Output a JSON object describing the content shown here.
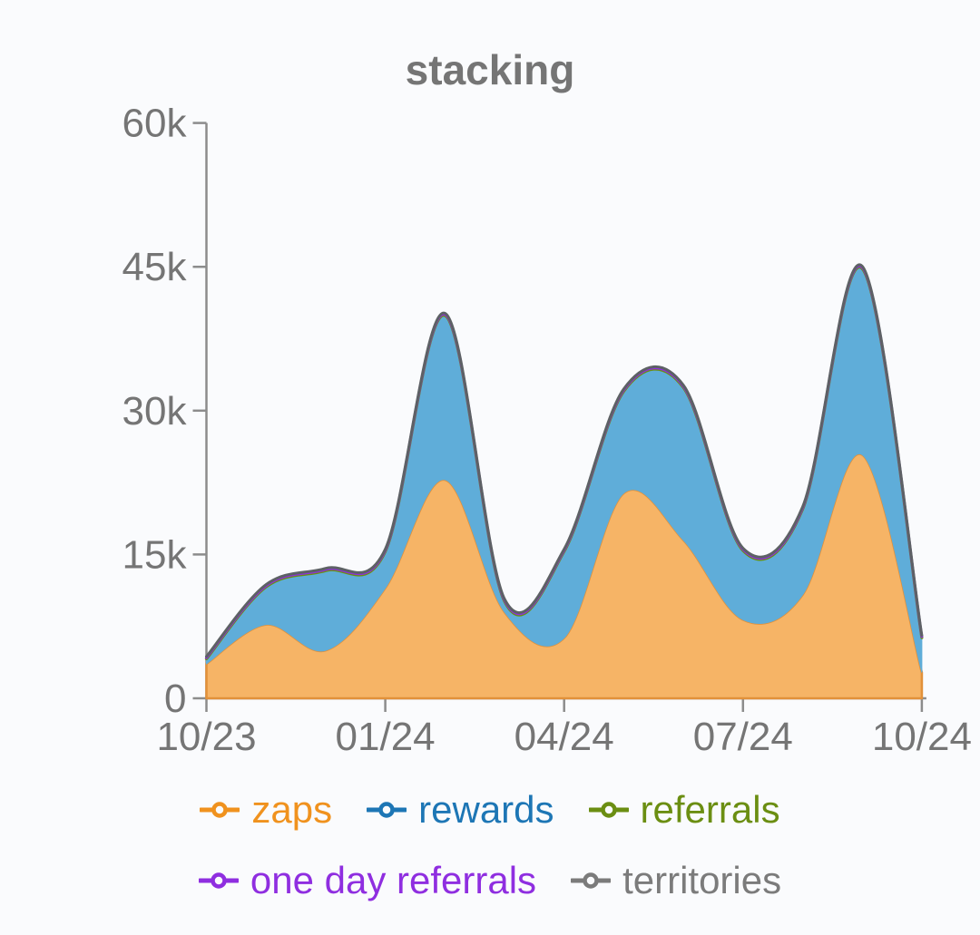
{
  "page": {
    "background": "#fafbfd"
  },
  "chart_data": {
    "type": "area",
    "stacked": true,
    "title": "stacking",
    "title_color": "#757575",
    "axis_color": "#8c8c8c",
    "tick_label_color": "#757575",
    "grid": false,
    "legend_position": "bottom",
    "x": [
      "10/23",
      "11/23",
      "12/23",
      "01/24",
      "02/24",
      "03/24",
      "04/24",
      "05/24",
      "06/24",
      "07/24",
      "08/24",
      "09/24",
      "10/24"
    ],
    "x_tick_labels": [
      "10/23",
      "01/24",
      "04/24",
      "07/24",
      "10/24"
    ],
    "x_tick_indices": [
      0,
      3,
      6,
      9,
      12
    ],
    "y_ticks": [
      {
        "label": "0",
        "value": 0
      },
      {
        "label": "15k",
        "value": 15000
      },
      {
        "label": "30k",
        "value": 30000
      },
      {
        "label": "45k",
        "value": 45000
      },
      {
        "label": "60k",
        "value": 60000
      }
    ],
    "ylim": [
      0,
      60000
    ],
    "series": [
      {
        "name": "zaps",
        "legend_color": "#f0921e",
        "fill": "#f6b466",
        "stroke": "#e2913a",
        "values": [
          3600,
          7700,
          5000,
          11500,
          22800,
          9000,
          6300,
          21400,
          16500,
          8200,
          10800,
          25400,
          2700
        ]
      },
      {
        "name": "rewards",
        "legend_color": "#1d76b5",
        "fill": "#5fadd9",
        "stroke": "#5fadd9",
        "values": [
          400,
          3800,
          8200,
          3700,
          17000,
          1000,
          8900,
          10500,
          15800,
          7100,
          8800,
          19300,
          3500
        ]
      },
      {
        "name": "referrals",
        "legend_color": "#6b8e12",
        "stroke": "#6b8e12",
        "values": [
          120,
          120,
          120,
          120,
          120,
          120,
          120,
          120,
          120,
          120,
          120,
          120,
          120
        ]
      },
      {
        "name": "one day referrals",
        "legend_color": "#8f2ee0",
        "stroke": "#8f2ee0",
        "values": [
          120,
          120,
          120,
          120,
          120,
          120,
          120,
          120,
          120,
          120,
          120,
          120,
          120
        ]
      },
      {
        "name": "territories",
        "legend_color": "#7b7b7b",
        "stroke": "#5d6165",
        "values": [
          120,
          120,
          120,
          120,
          120,
          120,
          120,
          120,
          120,
          120,
          120,
          120,
          120
        ]
      }
    ],
    "legend_rows": [
      [
        "zaps",
        "rewards",
        "referrals"
      ],
      [
        "one day referrals",
        "territories"
      ]
    ]
  }
}
